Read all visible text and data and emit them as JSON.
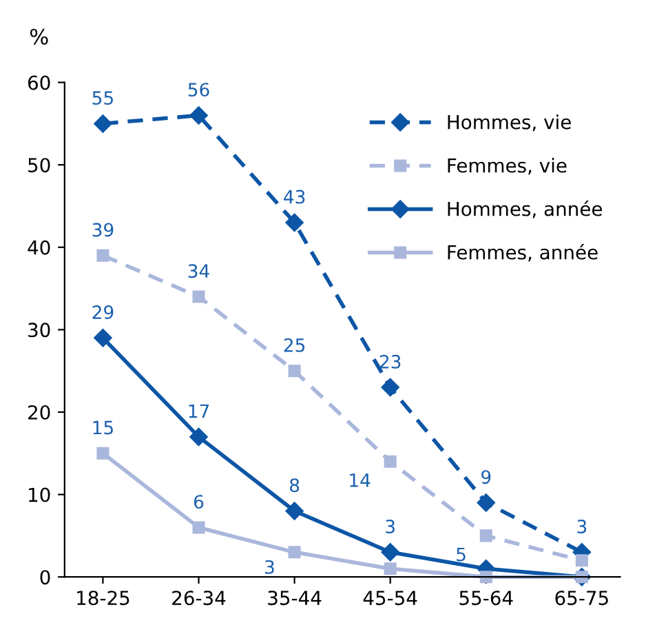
{
  "chart_data": {
    "type": "line",
    "ylabel": "%",
    "categories": [
      "18-25",
      "26-34",
      "35-44",
      "45-54",
      "55-64",
      "65-75"
    ],
    "ylim": [
      0,
      60
    ],
    "yticks": [
      0,
      10,
      20,
      30,
      40,
      50,
      60
    ],
    "grid": false,
    "legend": "top right",
    "series": [
      {
        "name": "Hommes, vie",
        "color": "#0d56a6",
        "marker": "diamond",
        "line_style": "dashed",
        "values": [
          55,
          56,
          43,
          23,
          9,
          3
        ],
        "value_labels": [
          "55",
          "56",
          "43",
          "23",
          "9",
          "3"
        ]
      },
      {
        "name": "Femmes, vie",
        "color": "#aab7dc",
        "marker": "square",
        "line_style": "dashed",
        "values": [
          39,
          34,
          25,
          14,
          5,
          2
        ],
        "value_labels": [
          "39",
          "34",
          "25",
          "14",
          "5",
          null
        ]
      },
      {
        "name": "Hommes, année",
        "color": "#0d56a6",
        "marker": "diamond",
        "line_style": "solid",
        "values": [
          29,
          17,
          8,
          3,
          1,
          0
        ],
        "value_labels": [
          "29",
          "17",
          "8",
          "3",
          null,
          null
        ]
      },
      {
        "name": "Femmes, année",
        "color": "#aab7dc",
        "marker": "square",
        "line_style": "solid",
        "values": [
          15,
          6,
          3,
          1,
          0,
          0
        ],
        "value_labels": [
          "15",
          "6",
          "3",
          null,
          null,
          null
        ]
      }
    ]
  }
}
